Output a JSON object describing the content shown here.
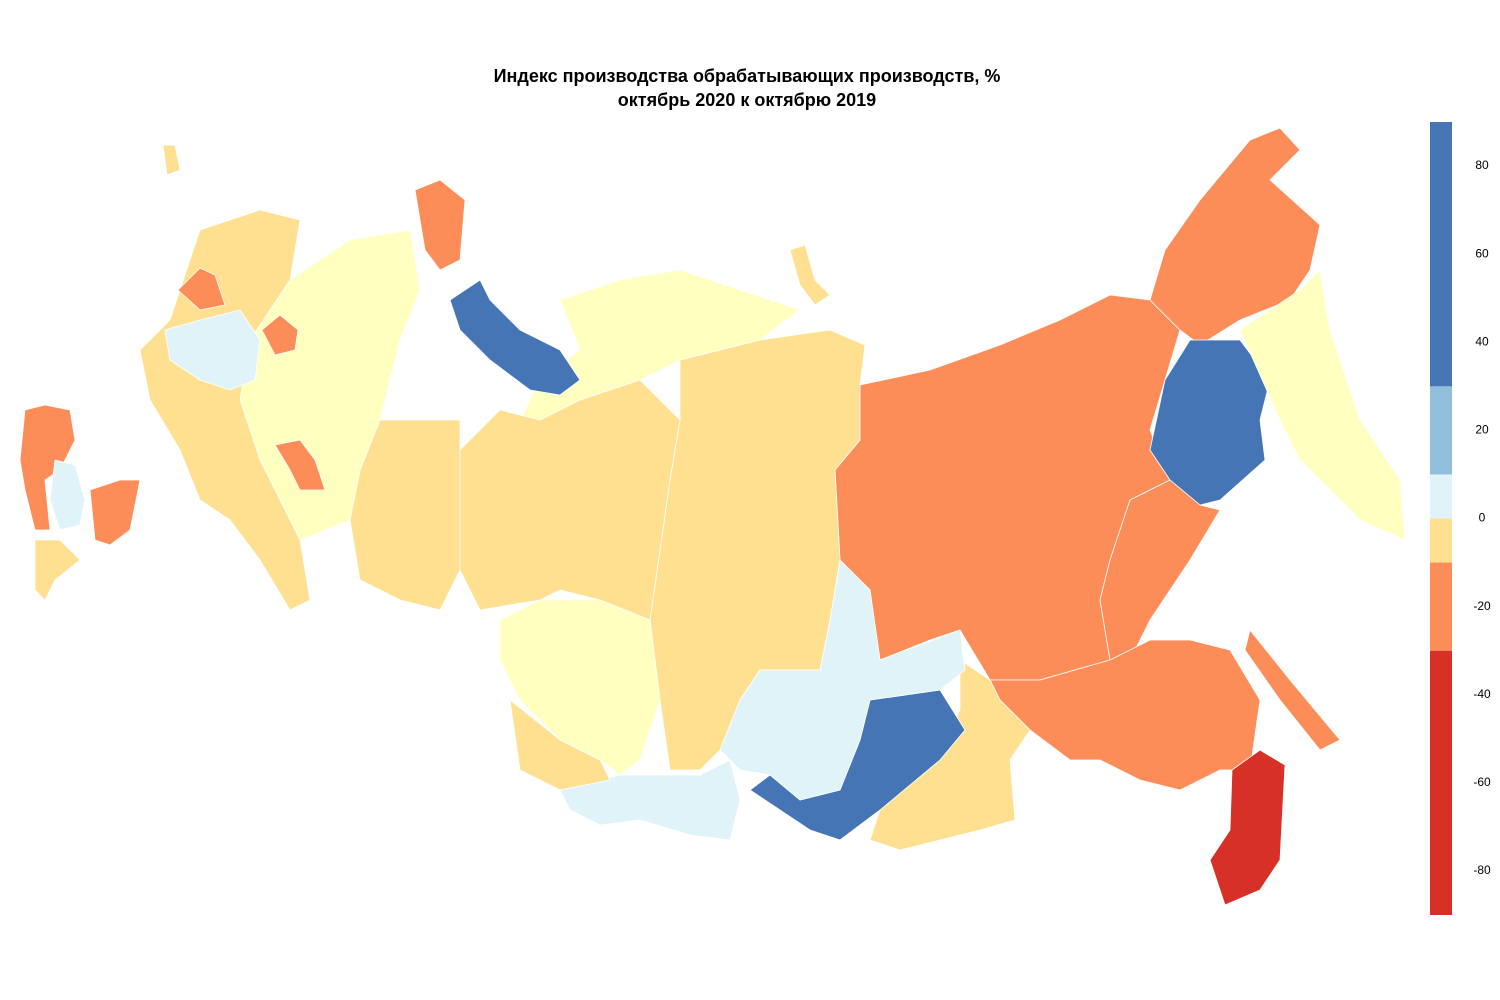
{
  "chart_data": {
    "type": "choropleth",
    "title": "Индекс производства обрабатывающих производств, %",
    "subtitle": "октябрь 2020 к октябрю 2019",
    "colorbar": {
      "lim": [
        -90,
        90
      ],
      "ticks": [
        80,
        60,
        40,
        20,
        0,
        -20,
        -40,
        -60,
        -80
      ],
      "bins": [
        {
          "range": [
            -90,
            -30
          ],
          "color": "#d73027"
        },
        {
          "range": [
            -30,
            -10
          ],
          "color": "#fc8d59"
        },
        {
          "range": [
            -10,
            0
          ],
          "color": "#fee090"
        },
        {
          "range": [
            0,
            10
          ],
          "color": "#e0f3f8"
        },
        {
          "range": [
            10,
            30
          ],
          "color": "#91bfdb"
        },
        {
          "range": [
            30,
            90
          ],
          "color": "#4575b4"
        }
      ]
    },
    "regions": [
      {
        "value": -20,
        "color": "#fc8d59"
      },
      {
        "value": -20,
        "color": "#fc8d59"
      },
      {
        "value": 50,
        "color": "#4575b4"
      },
      {
        "value": -2,
        "color": "#ffffbf"
      },
      {
        "value": -20,
        "color": "#fc8d59"
      },
      {
        "value": -20,
        "color": "#fc8d59"
      },
      {
        "value": -50,
        "color": "#d73027"
      },
      {
        "value": -20,
        "color": "#fc8d59"
      },
      {
        "value": -5,
        "color": "#fee090"
      },
      {
        "value": 50,
        "color": "#4575b4"
      },
      {
        "value": 5,
        "color": "#e0f3f8"
      },
      {
        "value": 5,
        "color": "#e0f3f8"
      },
      {
        "value": -5,
        "color": "#fee090"
      },
      {
        "value": -2,
        "color": "#ffffbf"
      },
      {
        "value": -5,
        "color": "#fee090"
      },
      {
        "value": -2,
        "color": "#ffffbf"
      },
      {
        "value": -5,
        "color": "#fee090"
      },
      {
        "value": 50,
        "color": "#4575b4"
      },
      {
        "value": -20,
        "color": "#fc8d59"
      },
      {
        "value": -5,
        "color": "#fee090"
      },
      {
        "value": -2,
        "color": "#ffffbf"
      },
      {
        "value": -5,
        "color": "#fee090"
      },
      {
        "value": 5,
        "color": "#e0f3f8"
      },
      {
        "value": -20,
        "color": "#fc8d59"
      },
      {
        "value": -20,
        "color": "#fc8d59"
      },
      {
        "value": -20,
        "color": "#fc8d59"
      },
      {
        "value": -20,
        "color": "#fc8d59"
      },
      {
        "value": -20,
        "color": "#fc8d59"
      },
      {
        "value": 5,
        "color": "#e0f3f8"
      },
      {
        "value": -5,
        "color": "#fee090"
      },
      {
        "value": -5,
        "color": "#fee090"
      },
      {
        "value": -5,
        "color": "#fee090"
      }
    ]
  }
}
